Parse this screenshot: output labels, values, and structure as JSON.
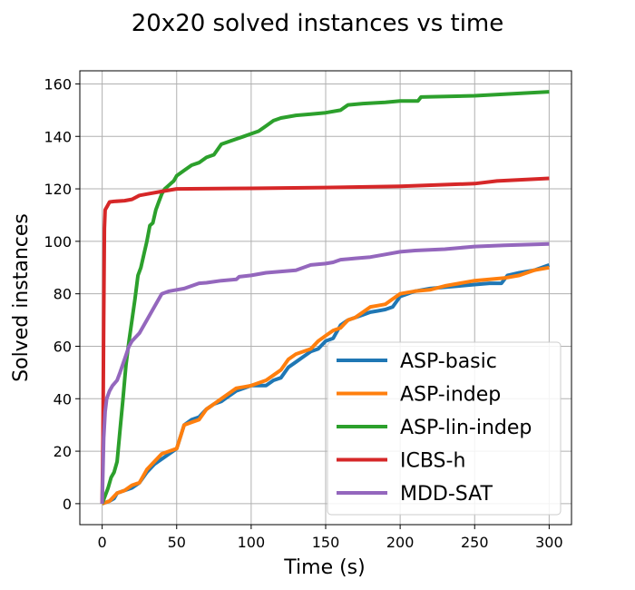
{
  "chart_data": {
    "type": "line",
    "title": "20x20 solved instances vs time",
    "xlabel": "Time (s)",
    "ylabel": "Solved instances",
    "xlim": [
      -15,
      315
    ],
    "ylim": [
      -8,
      165
    ],
    "xticks": [
      0,
      50,
      100,
      150,
      200,
      250,
      300
    ],
    "yticks": [
      0,
      20,
      40,
      60,
      80,
      100,
      120,
      140,
      160
    ],
    "grid": true,
    "legend_position": "bottom-right",
    "series": [
      {
        "name": "ASP-basic",
        "color": "#1f77b4",
        "x": [
          0,
          5,
          8,
          10,
          15,
          20,
          25,
          30,
          35,
          40,
          45,
          50,
          55,
          60,
          65,
          70,
          75,
          80,
          85,
          90,
          95,
          100,
          110,
          115,
          120,
          125,
          130,
          135,
          140,
          145,
          150,
          155,
          160,
          165,
          170,
          175,
          180,
          185,
          190,
          195,
          200,
          205,
          210,
          220,
          230,
          240,
          250,
          260,
          268,
          272,
          280,
          290,
          300
        ],
        "y": [
          0,
          1,
          2,
          4,
          5,
          6,
          8,
          12,
          15,
          17,
          19,
          21,
          30,
          32,
          33,
          36,
          38,
          39,
          41,
          43,
          44,
          45,
          45,
          47,
          48,
          52,
          54,
          56,
          58,
          59,
          62,
          63,
          68,
          70,
          71,
          72,
          73,
          73.5,
          74,
          75,
          79,
          80,
          81,
          82,
          82.5,
          83,
          83.5,
          84,
          84,
          87,
          88,
          89,
          91
        ]
      },
      {
        "name": "ASP-indep",
        "color": "#ff7f0e",
        "x": [
          0,
          5,
          10,
          15,
          20,
          25,
          30,
          35,
          40,
          45,
          50,
          55,
          60,
          65,
          70,
          75,
          80,
          85,
          90,
          95,
          100,
          110,
          115,
          120,
          125,
          130,
          135,
          140,
          145,
          150,
          155,
          160,
          165,
          170,
          175,
          180,
          185,
          190,
          195,
          200,
          205,
          210,
          220,
          230,
          240,
          250,
          260,
          270,
          280,
          290,
          300
        ],
        "y": [
          0,
          1,
          4,
          5,
          7,
          8,
          13,
          16,
          19,
          20,
          21,
          30,
          31,
          32,
          36,
          38,
          40,
          42,
          44,
          44.5,
          45,
          47,
          49,
          51,
          55,
          57,
          58,
          59,
          62,
          64,
          66,
          67,
          70,
          71,
          73,
          75,
          75.5,
          76,
          78,
          80,
          80.5,
          81,
          81.5,
          83,
          84,
          85,
          85.5,
          86,
          87,
          89,
          90
        ]
      },
      {
        "name": "ASP-lin-indep",
        "color": "#2ca02c",
        "x": [
          0,
          2,
          4,
          6,
          8,
          10,
          12,
          14,
          16,
          18,
          20,
          22,
          24,
          26,
          28,
          30,
          32,
          34,
          36,
          38,
          40,
          42,
          44,
          46,
          48,
          50,
          55,
          60,
          65,
          70,
          75,
          80,
          85,
          90,
          95,
          100,
          105,
          110,
          115,
          120,
          130,
          140,
          150,
          160,
          165,
          175,
          190,
          200,
          212,
          214,
          250,
          300
        ],
        "y": [
          0,
          3,
          6,
          10,
          12,
          16,
          28,
          40,
          53,
          62,
          70,
          78,
          87,
          90,
          95,
          100,
          106,
          107,
          112,
          115,
          118,
          120,
          121,
          122,
          123,
          125,
          127,
          129,
          130,
          132,
          133,
          137,
          138,
          139,
          140,
          141,
          142,
          144,
          146,
          147,
          148,
          148.5,
          149,
          150,
          152,
          152.5,
          153,
          153.5,
          153.5,
          155,
          155.5,
          157
        ]
      },
      {
        "name": "ICBS-h",
        "color": "#d62728",
        "x": [
          0,
          0.5,
          1,
          1.5,
          2,
          3,
          5,
          8,
          15,
          20,
          25,
          30,
          40,
          50,
          100,
          150,
          200,
          250,
          265,
          300
        ],
        "y": [
          0,
          25,
          70,
          105,
          112,
          113,
          115,
          115.2,
          115.5,
          116,
          117.5,
          118,
          119,
          120,
          120.2,
          120.5,
          121,
          122,
          123,
          124
        ]
      },
      {
        "name": "MDD-SAT",
        "color": "#9467bd",
        "x": [
          0,
          1,
          2,
          3,
          5,
          7,
          10,
          12,
          15,
          18,
          20,
          25,
          30,
          35,
          40,
          45,
          50,
          55,
          60,
          65,
          70,
          80,
          90,
          92,
          100,
          110,
          120,
          130,
          140,
          150,
          155,
          160,
          170,
          180,
          190,
          200,
          210,
          230,
          250,
          270,
          300
        ],
        "y": [
          0,
          25,
          35,
          40,
          43,
          45,
          47,
          50,
          55,
          60,
          62,
          65,
          70,
          75,
          80,
          81,
          81.5,
          82,
          83,
          84,
          84.2,
          85,
          85.5,
          86.5,
          87,
          88,
          88.5,
          89,
          91,
          91.5,
          92,
          93,
          93.5,
          94,
          95,
          96,
          96.5,
          97,
          98,
          98.5,
          99
        ]
      }
    ]
  }
}
